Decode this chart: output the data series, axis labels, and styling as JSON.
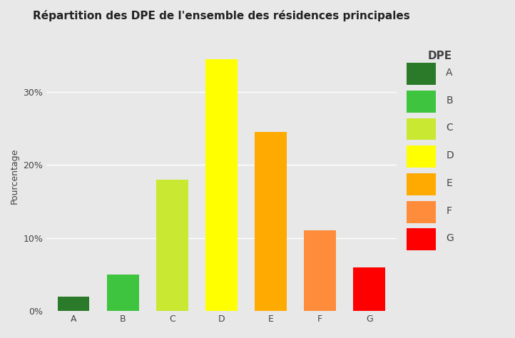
{
  "title": "Répartition des DPE de l'ensemble des résidences principales",
  "categories": [
    "A",
    "B",
    "C",
    "D",
    "E",
    "F",
    "G"
  ],
  "values": [
    2.0,
    5.0,
    18.0,
    34.5,
    24.5,
    11.0,
    6.0
  ],
  "bar_colors": [
    "#2a7a2a",
    "#3ec43e",
    "#c8e832",
    "#ffff00",
    "#ffaa00",
    "#ff8c3a",
    "#ff0000"
  ],
  "legend_colors": [
    "#2a7a2a",
    "#3ec43e",
    "#c8e832",
    "#ffff00",
    "#ffaa00",
    "#ff8c3a",
    "#ff0000"
  ],
  "legend_labels": [
    "A",
    "B",
    "C",
    "D",
    "E",
    "F",
    "G"
  ],
  "legend_title": "DPE",
  "ylabel": "Pourcentage",
  "xlabel": "",
  "ylim": [
    0,
    37
  ],
  "yticks": [
    0,
    10,
    20,
    30
  ],
  "ytick_labels": [
    "0%",
    "10%",
    "20%",
    "30%"
  ],
  "plot_bg_color": "#e8e8e8",
  "outer_bg_color": "#e8e8e8",
  "grid_color": "#ffffff",
  "title_fontsize": 11,
  "axis_fontsize": 9,
  "tick_fontsize": 9,
  "legend_fontsize": 10,
  "legend_title_fontsize": 11,
  "text_color": "#444444"
}
